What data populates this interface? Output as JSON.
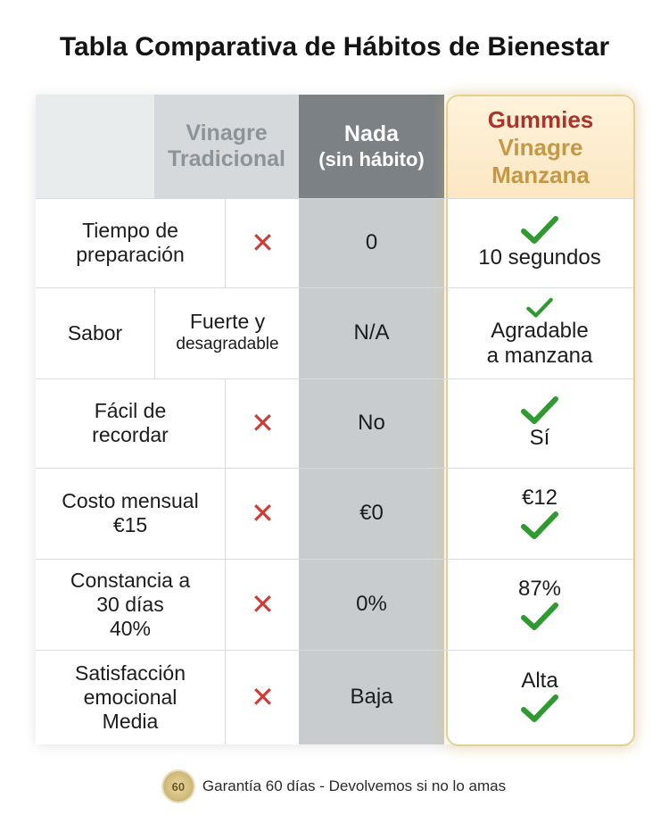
{
  "title": "Tabla Comparativa de Hábitos de Bienestar",
  "columns": {
    "vinagre": [
      "Vinagre",
      "Tradicional"
    ],
    "nada": [
      "Nada",
      "(sin hábito)"
    ],
    "gummies": [
      "Gummies",
      "Vinagre",
      "Manzana"
    ]
  },
  "rows": [
    {
      "label": [
        "Tiempo de",
        "preparación"
      ],
      "vinagre": "✕",
      "nada": "0",
      "gummies": [
        "10 segundos"
      ]
    },
    {
      "label": [
        "Sabor"
      ],
      "vinagre": [
        "Fuerte y",
        "desagradable"
      ],
      "nada": "N/A",
      "gummies": [
        "Agradable",
        "a manzana"
      ]
    },
    {
      "label": [
        "Fácil de",
        "recordar"
      ],
      "vinagre": "✕",
      "nada": "No",
      "gummies": [
        "Sí"
      ]
    },
    {
      "label": [
        "Costo mensual",
        "€15"
      ],
      "vinagre": "✕",
      "nada": "€0",
      "gummies": [
        "€12"
      ]
    },
    {
      "label": [
        "Constancia a",
        "30 días",
        "40%"
      ],
      "vinagre": "✕",
      "nada": "0%",
      "gummies": [
        "87%"
      ]
    },
    {
      "label": [
        "Satisfacción",
        "emocional",
        "Media"
      ],
      "vinagre": "✕",
      "nada": "Baja",
      "gummies": [
        "Alta"
      ]
    }
  ],
  "footer": {
    "seal_text": "60",
    "text": "Garantía 60 días - Devolvemos si no lo amas"
  },
  "colors": {
    "check": "#2f9a2f",
    "cross": "#d23b34",
    "gummies_title": "#a8342a",
    "gummies_accent": "#c59845"
  },
  "icons": {
    "check": "check-icon",
    "cross": "cross-icon",
    "seal": "guarantee-seal-icon"
  }
}
